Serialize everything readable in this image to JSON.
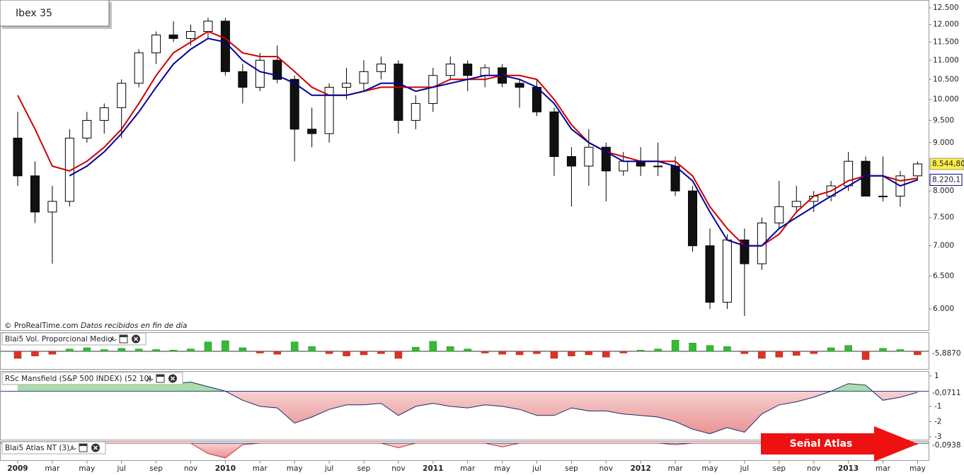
{
  "chart_data": [
    {
      "type": "candlestick",
      "title": "Ibex 35",
      "source": "© ProRealTime.com",
      "source_note": "Datos recibidos en fin de día",
      "log": true,
      "ylim": [
        5690,
        12740
      ],
      "yticks": [
        {
          "value": 12500,
          "label": "12.500"
        },
        {
          "value": 12000,
          "label": "12.000"
        },
        {
          "value": 11500,
          "label": "11.500"
        },
        {
          "value": 11000,
          "label": "11.000"
        },
        {
          "value": 10500,
          "label": "10.500"
        },
        {
          "value": 10000,
          "label": "10.000"
        },
        {
          "value": 9500,
          "label": "9.500"
        },
        {
          "value": 9000,
          "label": "9.000"
        },
        {
          "value": 8500,
          "label": "8.500"
        },
        {
          "value": 8000,
          "label": "8.000"
        },
        {
          "value": 7500,
          "label": "7.500"
        },
        {
          "value": 7000,
          "label": "7.000"
        },
        {
          "value": 6500,
          "label": "6.500"
        },
        {
          "value": 6000,
          "label": "6.000"
        }
      ],
      "categories": [
        "2009",
        null,
        "mar",
        null,
        "may",
        null,
        "jul",
        null,
        "sep",
        null,
        "nov",
        null,
        "2010",
        null,
        "mar",
        null,
        "may",
        null,
        "jul",
        null,
        "sep",
        null,
        "nov",
        null,
        "2011",
        null,
        "mar",
        null,
        "may",
        null,
        "jul",
        null,
        "sep",
        null,
        "nov",
        null,
        "2012",
        null,
        "mar",
        null,
        "may",
        null,
        "jul",
        null,
        "sep",
        null,
        "nov",
        null,
        "2013",
        null,
        "mar",
        null,
        "may"
      ],
      "open": [
        9100,
        8300,
        7600,
        7800,
        9100,
        9500,
        9800,
        10400,
        11200,
        11700,
        11600,
        11800,
        12100,
        10700,
        10300,
        11000,
        10500,
        9300,
        9200,
        10300,
        10400,
        10700,
        10900,
        9500,
        9900,
        10600,
        10900,
        10600,
        10800,
        10400,
        10300,
        9700,
        8700,
        8500,
        8900,
        8400,
        8600,
        8500,
        8500,
        8000,
        7000,
        6100,
        7100,
        6700,
        7400,
        7700,
        7800,
        7900,
        8100,
        8600,
        7900,
        7900,
        8300
      ],
      "high": [
        9700,
        8600,
        8100,
        9300,
        9700,
        9900,
        10500,
        11300,
        11800,
        12100,
        12000,
        12200,
        12200,
        10900,
        11200,
        11400,
        10600,
        9800,
        10400,
        10800,
        11000,
        11100,
        11000,
        10100,
        10800,
        11100,
        11000,
        10900,
        10900,
        10500,
        10500,
        9800,
        8900,
        9300,
        9000,
        8800,
        8900,
        9000,
        8700,
        8100,
        7300,
        7200,
        7300,
        7500,
        8200,
        8100,
        8000,
        8200,
        8800,
        8700,
        8700,
        8400,
        8600
      ],
      "low": [
        8100,
        7400,
        6700,
        7700,
        9000,
        9200,
        9100,
        10300,
        10900,
        11500,
        11400,
        11600,
        10600,
        9900,
        10200,
        10400,
        8600,
        8900,
        9000,
        10000,
        10200,
        10500,
        9200,
        9300,
        9700,
        10500,
        10200,
        10300,
        10300,
        9800,
        9600,
        8300,
        7700,
        8100,
        7800,
        8300,
        8300,
        8300,
        7900,
        6900,
        6000,
        6000,
        5900,
        6600,
        7300,
        7600,
        7600,
        7800,
        8000,
        7900,
        7800,
        7700,
        8200
      ],
      "close": [
        8300,
        7600,
        7800,
        9100,
        9500,
        9800,
        10400,
        11200,
        11700,
        11600,
        11800,
        12100,
        10700,
        10300,
        11000,
        10500,
        9300,
        9200,
        10300,
        10400,
        10700,
        10900,
        9500,
        9900,
        10600,
        10900,
        10600,
        10800,
        10400,
        10300,
        9700,
        8700,
        8500,
        8900,
        8400,
        8600,
        8500,
        8500,
        8000,
        7000,
        6100,
        7100,
        6700,
        7400,
        7700,
        7800,
        7900,
        8100,
        8600,
        7900,
        7900,
        8300,
        8544.8
      ],
      "close_labels": [
        null,
        null,
        null,
        null,
        null,
        null,
        null,
        null,
        null,
        null,
        null,
        null,
        null,
        null,
        null,
        null,
        null,
        null,
        null,
        null,
        null,
        null,
        null,
        null,
        null,
        null,
        null,
        null,
        null,
        null,
        null,
        null,
        null,
        null,
        null,
        null,
        null,
        null,
        null,
        null,
        null,
        null,
        null,
        null,
        null,
        null,
        null,
        null,
        null,
        null,
        null,
        null,
        "8.544,80"
      ],
      "series": [
        {
          "color": "#cc0000",
          "values": [
            10100,
            9300,
            8500,
            8400,
            8600,
            8900,
            9300,
            9900,
            10600,
            11200,
            11500,
            11800,
            11600,
            11200,
            11100,
            11100,
            10700,
            10300,
            10100,
            10100,
            10200,
            10300,
            10300,
            10300,
            10300,
            10500,
            10500,
            10500,
            10600,
            10600,
            10500,
            10000,
            9400,
            9000,
            8800,
            8700,
            8600,
            8600,
            8600,
            8300,
            7700,
            7300,
            7000,
            7000,
            7200,
            7600,
            7900,
            8000,
            8200,
            8300,
            8300,
            8200,
            8250
          ]
        },
        {
          "color": "#000099",
          "values": [
            null,
            null,
            null,
            8300,
            8500,
            8800,
            9200,
            9700,
            10300,
            10900,
            11300,
            11600,
            11500,
            11000,
            10700,
            10600,
            10400,
            10100,
            10100,
            10100,
            10200,
            10400,
            10400,
            10200,
            10300,
            10400,
            10500,
            10600,
            10600,
            10500,
            10300,
            9900,
            9300,
            9000,
            8800,
            8600,
            8600,
            8600,
            8500,
            8200,
            7600,
            7100,
            7000,
            7000,
            7300,
            7500,
            7700,
            7900,
            8100,
            8300,
            8300,
            8100,
            8220.1
          ],
          "value_labels": [
            null,
            null,
            null,
            null,
            null,
            null,
            null,
            null,
            null,
            null,
            null,
            null,
            null,
            null,
            null,
            null,
            null,
            null,
            null,
            null,
            null,
            null,
            null,
            null,
            null,
            null,
            null,
            null,
            null,
            null,
            null,
            null,
            null,
            null,
            null,
            null,
            null,
            null,
            null,
            null,
            null,
            null,
            null,
            null,
            null,
            null,
            null,
            null,
            null,
            null,
            null,
            null,
            "8.220,1"
          ]
        }
      ]
    },
    {
      "type": "bar",
      "title": "Blai5 Vol. Proporcional Medio",
      "ylim": [
        -30,
        30
      ],
      "colors": {
        "positive": "#33bb33",
        "negative": "#dd3322"
      },
      "values": [
        -12,
        -8,
        -5,
        4,
        6,
        3,
        5,
        4,
        3,
        2,
        4,
        16,
        18,
        6,
        -3,
        -5,
        16,
        8,
        -4,
        -8,
        -6,
        -4,
        -12,
        7,
        17,
        8,
        4,
        -3,
        -5,
        -6,
        -4,
        -12,
        -8,
        -6,
        -10,
        -3,
        2,
        4,
        19,
        14,
        10,
        8,
        -4,
        -12,
        -10,
        -7,
        -4,
        6,
        10,
        -14,
        5,
        3,
        -5.887
      ],
      "value_labels": [
        null,
        null,
        null,
        null,
        null,
        null,
        null,
        null,
        null,
        null,
        null,
        null,
        null,
        null,
        null,
        null,
        null,
        null,
        null,
        null,
        null,
        null,
        null,
        null,
        null,
        null,
        null,
        null,
        null,
        null,
        null,
        null,
        null,
        null,
        null,
        null,
        null,
        null,
        null,
        null,
        null,
        null,
        null,
        null,
        null,
        null,
        null,
        null,
        null,
        null,
        null,
        null,
        "-5,8870"
      ]
    },
    {
      "type": "area",
      "title": "RSc Mansfield (S&P 500 INDEX) (52 10)",
      "ylim": [
        -3.19,
        1.23
      ],
      "yticks": [
        1,
        -1,
        -2,
        -3
      ],
      "colors": {
        "positive": "#aaddaa",
        "negative": "#e88a8a",
        "line": "#1a2a6c"
      },
      "values": [
        0.5,
        0.6,
        0.5,
        0.6,
        0.5,
        0.6,
        0.7,
        0.6,
        0.6,
        0.5,
        0.6,
        0.3,
        0,
        -0.6,
        -1,
        -1.1,
        -2.1,
        -1.7,
        -1.2,
        -0.9,
        -0.9,
        -0.8,
        -1.6,
        -1,
        -0.8,
        -1,
        -1.1,
        -0.9,
        -1,
        -1.2,
        -1.6,
        -1.6,
        -1.1,
        -1.3,
        -1.3,
        -1.5,
        -1.6,
        -1.7,
        -2,
        -2.5,
        -2.8,
        -2.4,
        -2.7,
        -1.5,
        -0.9,
        -0.7,
        -0.4,
        0,
        0.5,
        0.4,
        -0.6,
        -0.4,
        -0.0711
      ],
      "value_labels": [
        null,
        null,
        null,
        null,
        null,
        null,
        null,
        null,
        null,
        null,
        null,
        null,
        null,
        null,
        null,
        null,
        null,
        null,
        null,
        null,
        null,
        null,
        null,
        null,
        null,
        null,
        null,
        null,
        null,
        null,
        null,
        null,
        null,
        null,
        null,
        null,
        null,
        null,
        null,
        null,
        null,
        null,
        null,
        null,
        null,
        null,
        null,
        null,
        null,
        null,
        null,
        null,
        "-0,0711"
      ]
    },
    {
      "type": "area",
      "title": "Blai5 Atlas NT (3)",
      "annotation": "Señal Atlas",
      "ylim": [
        -1.1,
        0.05
      ],
      "colors": {
        "positive": "#aaddaa",
        "negative": "#e88a8a",
        "line": "#cc3333"
      },
      "values": [
        0,
        0,
        0,
        0,
        0,
        0,
        0,
        0,
        0,
        0,
        0,
        -0.7,
        -1,
        -0.1,
        0,
        0,
        0,
        0,
        0,
        0,
        0,
        0,
        -0.3,
        0,
        0,
        0,
        0,
        0,
        -0.25,
        0,
        0,
        0,
        0,
        0,
        0,
        0,
        0,
        0,
        -0.1,
        0,
        0,
        0,
        0,
        0,
        0,
        0,
        0,
        0,
        0,
        0,
        0,
        0,
        -0.0938
      ],
      "value_labels": [
        null,
        null,
        null,
        null,
        null,
        null,
        null,
        null,
        null,
        null,
        null,
        null,
        null,
        null,
        null,
        null,
        null,
        null,
        null,
        null,
        null,
        null,
        null,
        null,
        null,
        null,
        null,
        null,
        null,
        null,
        null,
        null,
        null,
        null,
        null,
        null,
        null,
        null,
        null,
        null,
        null,
        null,
        null,
        null,
        null,
        null,
        null,
        null,
        null,
        null,
        null,
        null,
        "-0,0938"
      ]
    }
  ]
}
